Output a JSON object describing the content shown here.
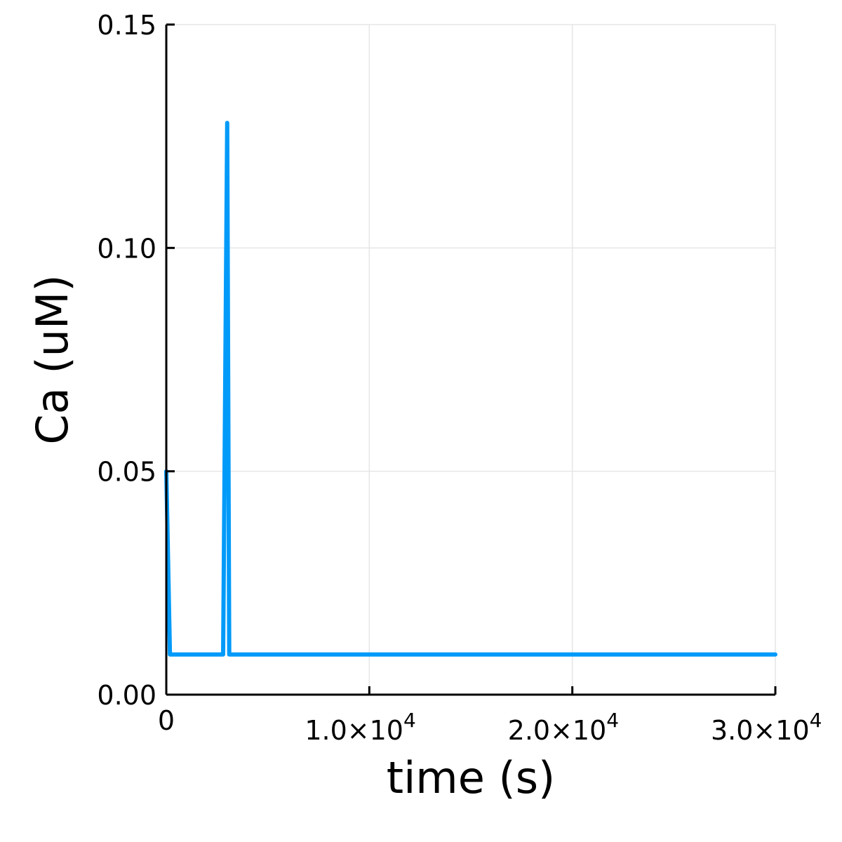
{
  "chart_data": {
    "type": "line",
    "title": "",
    "xlabel": "time (s)",
    "ylabel": "Ca (uM)",
    "xlim": [
      0,
      30000
    ],
    "ylim": [
      0,
      0.15
    ],
    "grid": true,
    "legend": "none",
    "xticks": [
      {
        "value": 0,
        "label": "0",
        "exp": ""
      },
      {
        "value": 10000,
        "label": "1.0×10",
        "exp": "4"
      },
      {
        "value": 20000,
        "label": "2.0×10",
        "exp": "4"
      },
      {
        "value": 30000,
        "label": "3.0×10",
        "exp": "4"
      }
    ],
    "yticks": [
      {
        "value": 0,
        "label": "0.00"
      },
      {
        "value": 0.05,
        "label": "0.05"
      },
      {
        "value": 0.1,
        "label": "0.10"
      },
      {
        "value": 0.15,
        "label": "0.15"
      }
    ],
    "series": [
      {
        "color": "#009af9",
        "x": [
          0,
          180,
          2800,
          3000,
          3100,
          3300,
          30000
        ],
        "y": [
          0.05,
          0.009,
          0.009,
          0.128,
          0.009,
          0.009,
          0.009
        ]
      }
    ]
  }
}
